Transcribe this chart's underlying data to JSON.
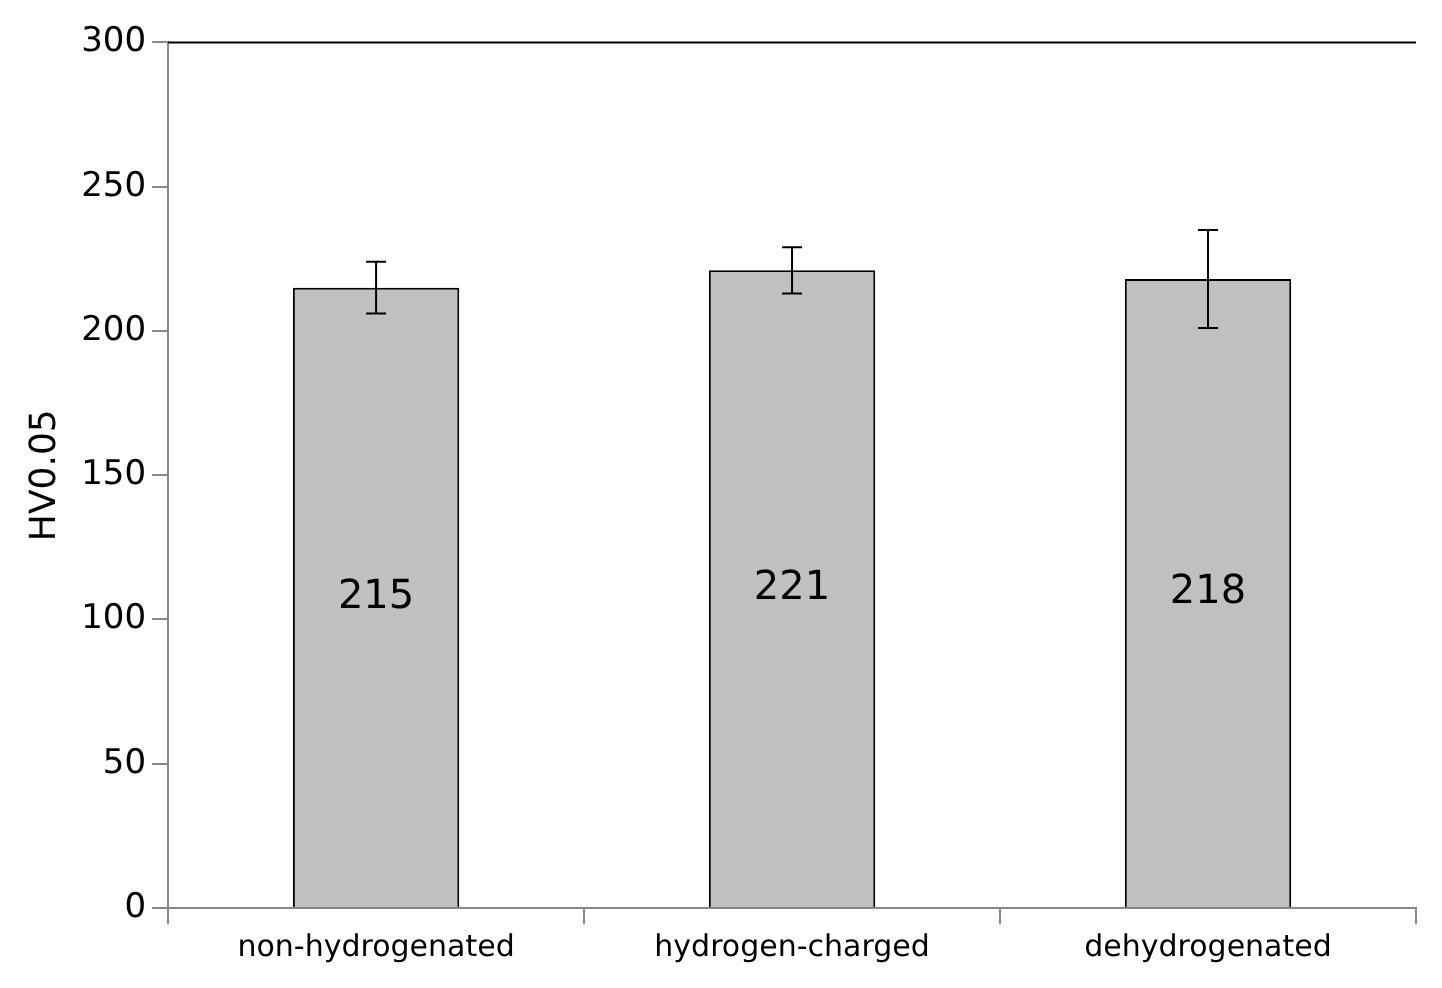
{
  "chart_data": {
    "type": "bar",
    "ylabel": "HV0.05",
    "categories": [
      "non-hydrogenated",
      "hydrogen-charged",
      "dehydrogenated"
    ],
    "values": [
      215,
      221,
      218
    ],
    "errors": [
      9,
      8,
      17
    ],
    "color": "#c0c0c0",
    "ylim": [
      0,
      300
    ],
    "yticks": [
      0,
      50,
      100,
      150,
      200,
      250,
      300
    ],
    "grid": false,
    "legend": false,
    "data_labels": true
  }
}
